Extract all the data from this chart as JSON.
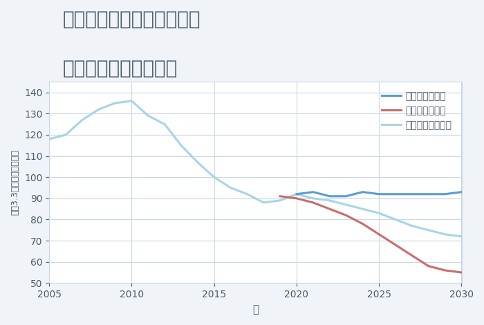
{
  "title_line1": "兵庫県豊岡市出石町宮内の",
  "title_line2": "中古戸建ての価格推移",
  "xlabel": "年",
  "ylabel": "坪（3.3㎡）単価（万円）",
  "ylim": [
    50,
    145
  ],
  "yticks": [
    50,
    60,
    70,
    80,
    90,
    100,
    110,
    120,
    130,
    140
  ],
  "xlim": [
    2005,
    2030
  ],
  "xticks": [
    2005,
    2010,
    2015,
    2020,
    2025,
    2030
  ],
  "bg_color": "#f0f4f8",
  "plot_bg_color": "#ffffff",
  "grid_color": "#c8d8e8",
  "good_scenario": {
    "label": "グッドシナリオ",
    "color": "#5b9bd5",
    "linewidth": 2.2,
    "x": [
      2005,
      2006,
      2007,
      2008,
      2009,
      2010,
      2011,
      2012,
      2013,
      2014,
      2015,
      2016,
      2017,
      2018,
      2019,
      2020,
      2021,
      2022,
      2023,
      2024,
      2025,
      2026,
      2027,
      2028,
      2029,
      2030
    ],
    "y": [
      null,
      null,
      null,
      null,
      null,
      null,
      null,
      null,
      null,
      null,
      null,
      null,
      null,
      null,
      null,
      92,
      93,
      91,
      91,
      93,
      92,
      92,
      92,
      92,
      92,
      93
    ]
  },
  "bad_scenario": {
    "label": "バッドシナリオ",
    "color": "#cd6b6b",
    "linewidth": 2.2,
    "x": [
      2019,
      2020,
      2021,
      2022,
      2023,
      2024,
      2025,
      2026,
      2027,
      2028,
      2029,
      2030
    ],
    "y": [
      91,
      90,
      88,
      85,
      82,
      78,
      73,
      68,
      63,
      58,
      56,
      55
    ]
  },
  "normal_scenario": {
    "label": "ノーマルシナリオ",
    "color": "#a8d4e6",
    "linewidth": 2.2,
    "x": [
      2005,
      2006,
      2007,
      2008,
      2009,
      2010,
      2011,
      2012,
      2013,
      2014,
      2015,
      2016,
      2017,
      2018,
      2019,
      2020,
      2021,
      2022,
      2023,
      2024,
      2025,
      2026,
      2027,
      2028,
      2029,
      2030
    ],
    "y": [
      118,
      120,
      127,
      132,
      135,
      136,
      129,
      125,
      115,
      107,
      100,
      95,
      92,
      88,
      89,
      92,
      90,
      89,
      87,
      85,
      83,
      80,
      77,
      75,
      73,
      72
    ]
  },
  "title_color": "#4a5a6a",
  "title_fontsize": 20,
  "tick_fontsize": 10,
  "legend_fontsize": 10
}
